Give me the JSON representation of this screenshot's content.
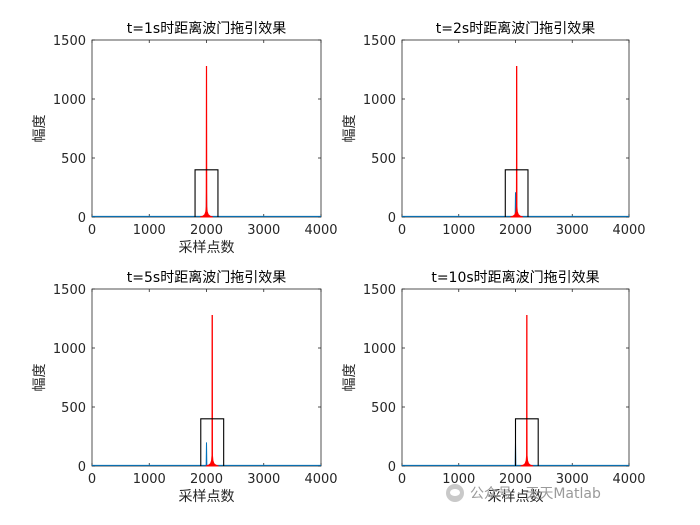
{
  "chart_data": [
    {
      "type": "line",
      "title": "t=1s时距离波门拖引效果",
      "xlabel": "采样点数",
      "ylabel": "幅度",
      "xlim": [
        0,
        4000
      ],
      "ylim": [
        0,
        1500
      ],
      "xticks": [
        "0",
        "1000",
        "2000",
        "3000",
        "4000"
      ],
      "yticks": [
        "0",
        "500",
        "1000",
        "1500"
      ],
      "gate": {
        "x_start": 1800,
        "x_end": 2200,
        "height": 400,
        "color": "#000000"
      },
      "series": [
        {
          "color": "#0072BD",
          "peak_x": 2000,
          "peak_y": 210
        },
        {
          "color": "#FF0000",
          "peak_x": 2000,
          "peak_y": 1280
        }
      ]
    },
    {
      "type": "line",
      "title": "t=2s时距离波门拖引效果",
      "xlabel": "",
      "ylabel": "幅度",
      "xlim": [
        0,
        4000
      ],
      "ylim": [
        0,
        1500
      ],
      "xticks": [
        "0",
        "1000",
        "2000",
        "3000",
        "4000"
      ],
      "yticks": [
        "0",
        "500",
        "1000",
        "1500"
      ],
      "gate": {
        "x_start": 1820,
        "x_end": 2220,
        "height": 400,
        "color": "#000000"
      },
      "series": [
        {
          "color": "#0072BD",
          "peak_x": 2000,
          "peak_y": 210
        },
        {
          "color": "#FF0000",
          "peak_x": 2020,
          "peak_y": 1280
        }
      ]
    },
    {
      "type": "line",
      "title": "t=5s时距离波门拖引效果",
      "xlabel": "采样点数",
      "ylabel": "幅度",
      "xlim": [
        0,
        4000
      ],
      "ylim": [
        0,
        1500
      ],
      "xticks": [
        "0",
        "1000",
        "2000",
        "3000",
        "4000"
      ],
      "yticks": [
        "0",
        "500",
        "1000",
        "1500"
      ],
      "gate": {
        "x_start": 1900,
        "x_end": 2300,
        "height": 400,
        "color": "#000000"
      },
      "series": [
        {
          "color": "#0072BD",
          "peak_x": 2000,
          "peak_y": 200
        },
        {
          "color": "#FF0000",
          "peak_x": 2100,
          "peak_y": 1280
        }
      ]
    },
    {
      "type": "line",
      "title": "t=10s时距离波门拖引效果",
      "xlabel": "采样点数",
      "ylabel": "幅度",
      "xlim": [
        0,
        4000
      ],
      "ylim": [
        0,
        1500
      ],
      "xticks": [
        "0",
        "1000",
        "2000",
        "3000",
        "4000"
      ],
      "yticks": [
        "0",
        "500",
        "1000",
        "1500"
      ],
      "gate": {
        "x_start": 2000,
        "x_end": 2400,
        "height": 400,
        "color": "#000000"
      },
      "series": [
        {
          "color": "#0072BD",
          "peak_x": 2000,
          "peak_y": 200
        },
        {
          "color": "#FF0000",
          "peak_x": 2200,
          "peak_y": 1280
        }
      ]
    }
  ],
  "watermark": {
    "text": "公众号 · 天天Matlab",
    "icon": "wechat-icon"
  }
}
